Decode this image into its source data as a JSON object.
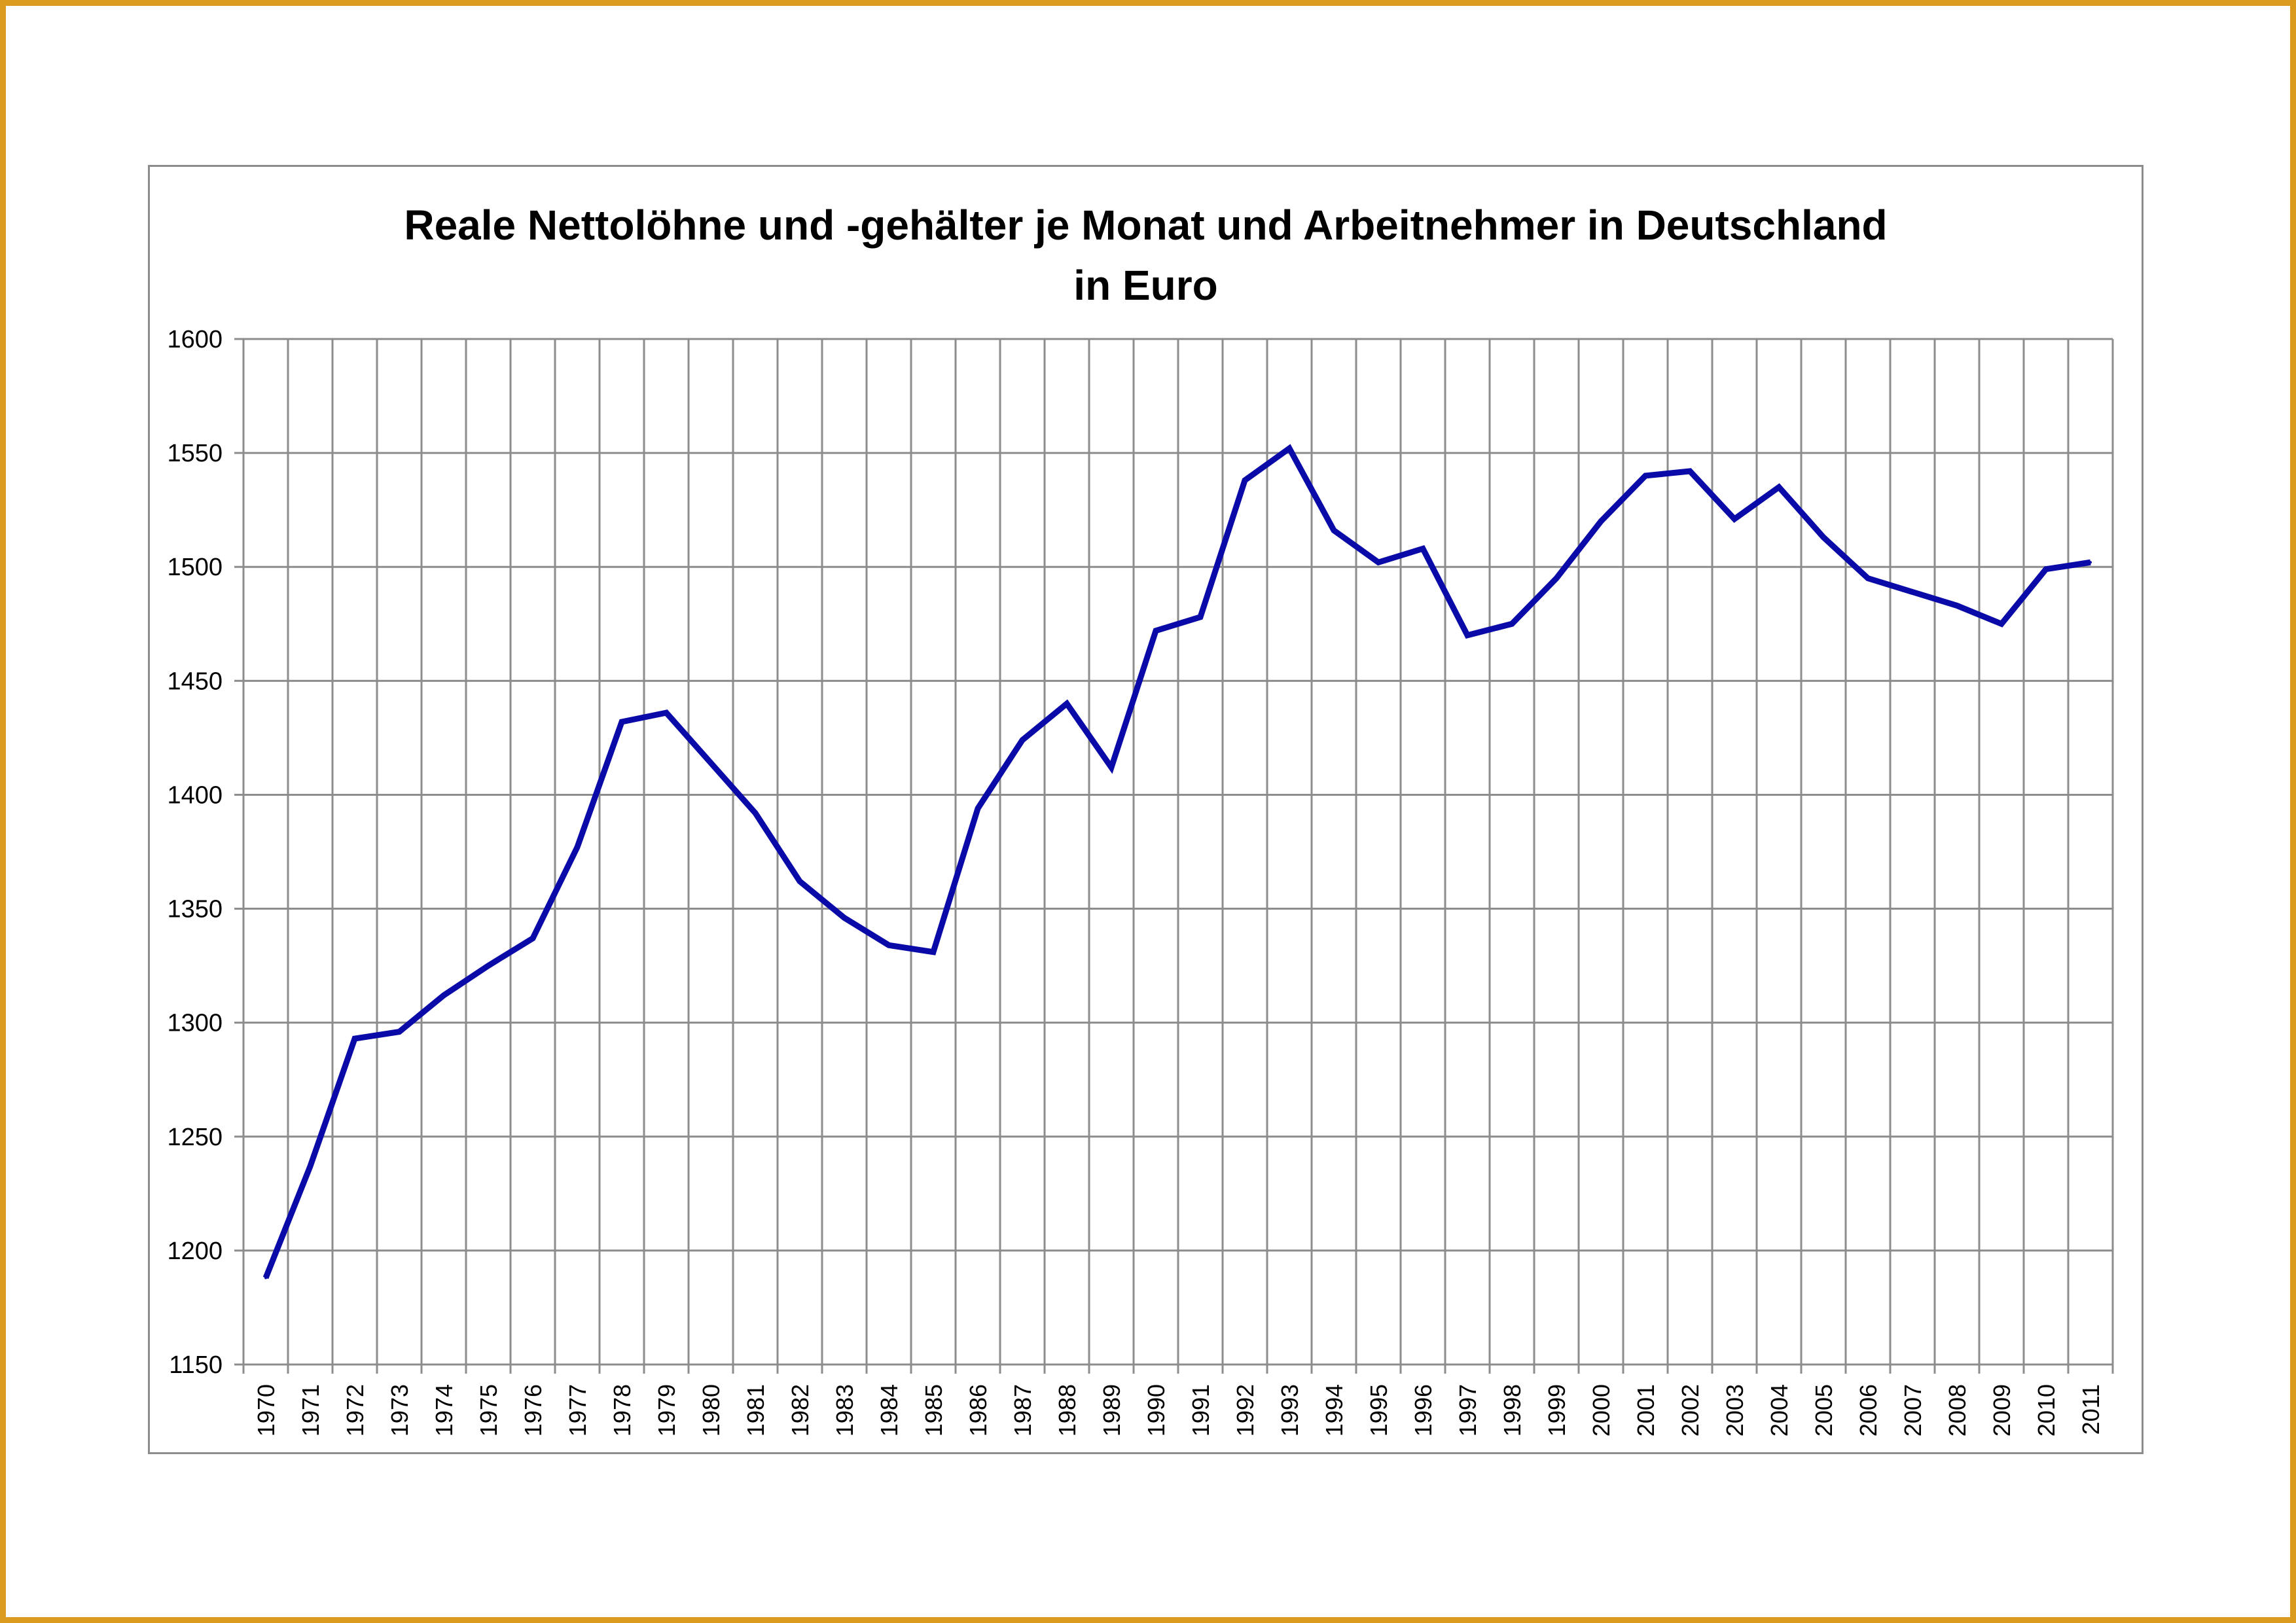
{
  "chart_data": {
    "type": "line",
    "title": "Reale Nettolöhne und -gehälter je Monat und Arbeitnehmer in Deutschland",
    "subtitle": "in Euro",
    "xlabel": "",
    "ylabel": "",
    "ylim": [
      1150,
      1600
    ],
    "yticks": [
      1150,
      1200,
      1250,
      1300,
      1350,
      1400,
      1450,
      1500,
      1550,
      1600
    ],
    "grid": true,
    "legend": "none",
    "categories": [
      "1970",
      "1971",
      "1972",
      "1973",
      "1974",
      "1975",
      "1976",
      "1977",
      "1978",
      "1979",
      "1980",
      "1981",
      "1982",
      "1983",
      "1984",
      "1985",
      "1986",
      "1987",
      "1988",
      "1989",
      "1990",
      "1991",
      "1992",
      "1993",
      "1994",
      "1995",
      "1996",
      "1997",
      "1998",
      "1999",
      "2000",
      "2001",
      "2002",
      "2003",
      "2004",
      "2005",
      "2006",
      "2007",
      "2008",
      "2009",
      "2010",
      "2011"
    ],
    "series": [
      {
        "color": "#0a0aa8",
        "values": [
          1188,
          1237,
          1293,
          1296,
          1312,
          1325,
          1337,
          1377,
          1432,
          1436,
          1414,
          1392,
          1362,
          1346,
          1334,
          1331,
          1394,
          1424,
          1440,
          1412,
          1472,
          1478,
          1538,
          1552,
          1516,
          1502,
          1508,
          1470,
          1475,
          1495,
          1520,
          1540,
          1542,
          1521,
          1535,
          1513,
          1495,
          1489,
          1483,
          1475,
          1499,
          1502
        ]
      }
    ]
  },
  "colors": {
    "frame": "#d99a1e",
    "line": "#0a0aa8",
    "grid": "#8c8c8c"
  }
}
